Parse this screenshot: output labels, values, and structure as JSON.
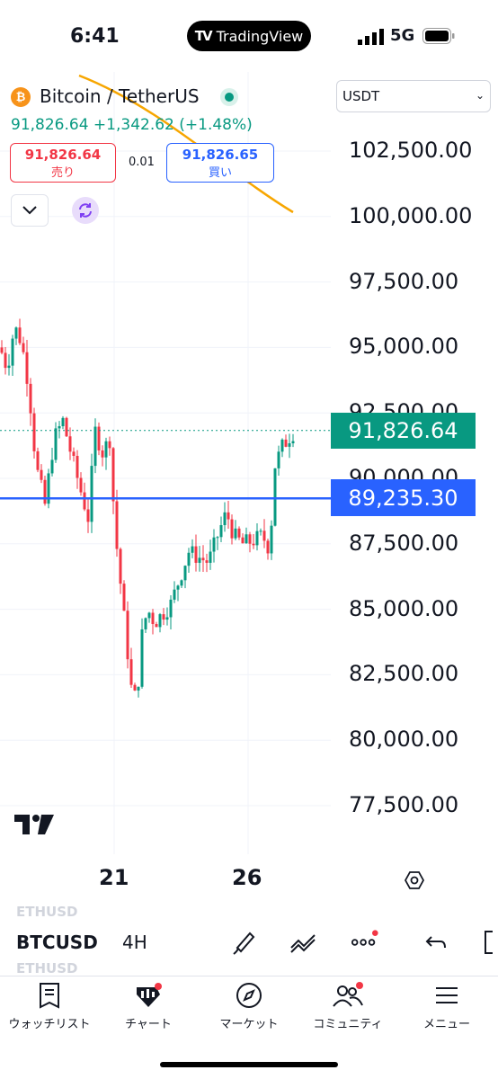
{
  "status_bar": {
    "time": "6:41",
    "app_pill": "TradingView",
    "network": "5G"
  },
  "header": {
    "coin_glyph": "₿",
    "symbol_title": "Bitcoin / TetherUS",
    "price_line": "91,826.64  +1,342.62 (+1.48%)",
    "sell": {
      "price": "91,826.64",
      "label": "売り"
    },
    "spread": "0.01",
    "buy": {
      "price": "91,826.65",
      "label": "買い"
    },
    "currency": "USDT"
  },
  "chart_data": {
    "type": "candlestick",
    "y_axis_ticks": [
      "102,500.00",
      "100,000.00",
      "97,500.00",
      "95,000.00",
      "92,500.00",
      "90,000.00",
      "87,500.00",
      "85,000.00",
      "82,500.00",
      "80,000.00",
      "77,500.00"
    ],
    "ylim": [
      77500,
      102500
    ],
    "x_axis_ticks": [
      "21",
      "26"
    ],
    "last_price_label": "91,826.64",
    "horizontal_line_label": "89,235.30",
    "horizontal_line_value": 89235.3,
    "interval": "4H",
    "colors": {
      "up": "#089981",
      "down": "#f23645",
      "line": "#2962ff",
      "trend": "#f7a600"
    }
  },
  "toolbar": {
    "symbol": "BTCUSD",
    "ghost_top": "ETHUSD",
    "ghost_bottom": "ETHUSD",
    "interval": "4H",
    "tools": [
      "brush-icon",
      "trend-lines-icon",
      "more-dots-icon",
      "undo-icon"
    ]
  },
  "nav": [
    {
      "label": "ウォッチリスト",
      "icon": "watchlist-icon"
    },
    {
      "label": "チャート",
      "icon": "chart-icon"
    },
    {
      "label": "マーケット",
      "icon": "compass-icon"
    },
    {
      "label": "コミュニティ",
      "icon": "community-icon"
    },
    {
      "label": "メニュー",
      "icon": "menu-icon"
    }
  ]
}
